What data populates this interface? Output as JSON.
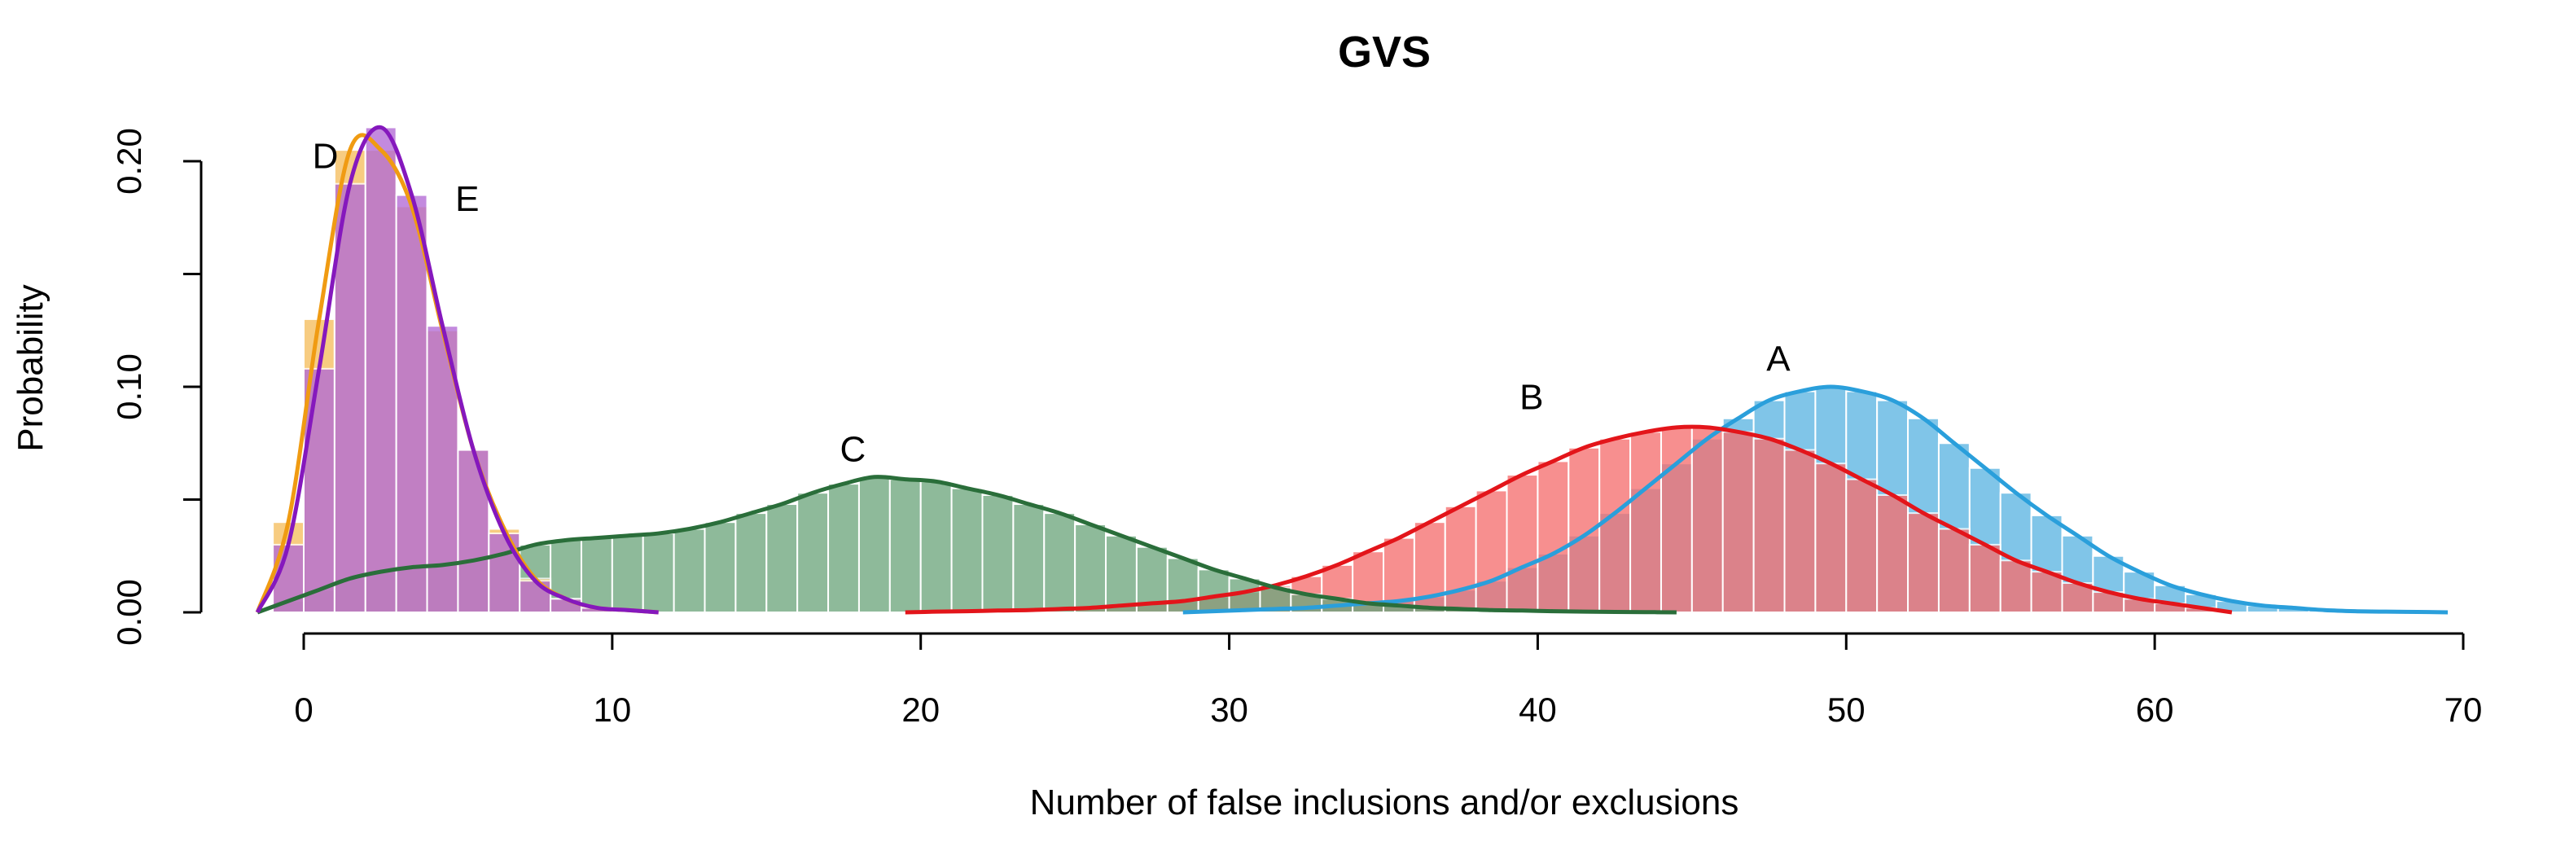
{
  "chart_data": {
    "type": "histogram-density",
    "title": "GVS",
    "xlabel": "Number of false inclusions and/or exclusions",
    "ylabel": "Probability",
    "xlim": [
      -2,
      70
    ],
    "ylim": [
      0,
      0.22
    ],
    "x_ticks": [
      "0",
      "10",
      "20",
      "30",
      "40",
      "50",
      "60",
      "70"
    ],
    "x_tick_values": [
      0,
      10,
      20,
      30,
      40,
      50,
      60,
      70
    ],
    "y_ticks": [
      "0.00",
      "0.10",
      "0.20"
    ],
    "y_tick_values": [
      0,
      0.1,
      0.2
    ],
    "y_minor_ticks": [
      0.05,
      0.15
    ],
    "series": [
      {
        "name": "A",
        "color": "#2A9FDB",
        "bar_color": "#5DB5E2",
        "bin_start": 29,
        "bin_width": 1,
        "values": [
          0.0005,
          0.001,
          0.0015,
          0.002,
          0.003,
          0.004,
          0.005,
          0.007,
          0.01,
          0.014,
          0.02,
          0.026,
          0.034,
          0.044,
          0.055,
          0.066,
          0.077,
          0.086,
          0.094,
          0.098,
          0.1,
          0.098,
          0.094,
          0.086,
          0.075,
          0.064,
          0.053,
          0.043,
          0.034,
          0.025,
          0.018,
          0.012,
          0.008,
          0.005,
          0.003,
          0.002,
          0.001,
          0.0005,
          0.0003,
          0.0002
        ]
      },
      {
        "name": "B",
        "color": "#E3151A",
        "bar_color": "#F57070",
        "bin_start": 20,
        "bin_width": 1,
        "values": [
          0.0003,
          0.0005,
          0.0008,
          0.001,
          0.0015,
          0.002,
          0.003,
          0.004,
          0.005,
          0.007,
          0.009,
          0.012,
          0.016,
          0.021,
          0.027,
          0.033,
          0.04,
          0.047,
          0.054,
          0.061,
          0.067,
          0.073,
          0.077,
          0.08,
          0.082,
          0.082,
          0.08,
          0.077,
          0.072,
          0.066,
          0.059,
          0.052,
          0.044,
          0.037,
          0.03,
          0.023,
          0.018,
          0.013,
          0.009,
          0.006,
          0.004,
          0.002
        ]
      },
      {
        "name": "C",
        "color": "#2A6E3A",
        "bar_color": "#6FA77E",
        "bin_start": -1,
        "bin_width": 1,
        "values": [
          0.005,
          0.01,
          0.015,
          0.018,
          0.02,
          0.021,
          0.023,
          0.026,
          0.03,
          0.032,
          0.033,
          0.034,
          0.035,
          0.037,
          0.04,
          0.044,
          0.048,
          0.053,
          0.057,
          0.06,
          0.059,
          0.058,
          0.055,
          0.052,
          0.048,
          0.044,
          0.039,
          0.034,
          0.029,
          0.024,
          0.019,
          0.015,
          0.011,
          0.008,
          0.006,
          0.004,
          0.003,
          0.002,
          0.0015,
          0.001,
          0.0008,
          0.0005,
          0.0003,
          0.0002,
          0.0001
        ]
      },
      {
        "name": "D",
        "color": "#F09B12",
        "bar_color": "#F5BE5E",
        "bin_start": -1,
        "bin_width": 1,
        "values": [
          0.04,
          0.13,
          0.205,
          0.205,
          0.18,
          0.125,
          0.072,
          0.037,
          0.015,
          0.006,
          0.002,
          0.001
        ]
      },
      {
        "name": "E",
        "color": "#8518BD",
        "bar_color": "#B36AD6",
        "bin_start": -1,
        "bin_width": 1,
        "values": [
          0.03,
          0.108,
          0.19,
          0.215,
          0.185,
          0.127,
          0.072,
          0.035,
          0.014,
          0.006,
          0.002,
          0.001
        ]
      }
    ],
    "label_positions": [
      {
        "name": "A",
        "x": 47.8,
        "y": 0.107
      },
      {
        "name": "B",
        "x": 39.8,
        "y": 0.09
      },
      {
        "name": "C",
        "x": 17.8,
        "y": 0.067
      },
      {
        "name": "D",
        "x": 0.7,
        "y": 0.197
      },
      {
        "name": "E",
        "x": 5.3,
        "y": 0.178
      }
    ]
  }
}
